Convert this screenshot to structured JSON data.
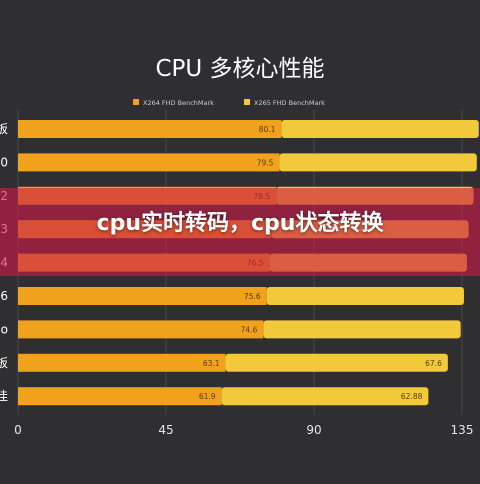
{
  "chart_data": {
    "type": "bar",
    "orientation": "horizontal",
    "stacked": true,
    "title": "CPU 多核心性能",
    "xlim": [
      0,
      135
    ],
    "xticks": [
      0,
      45,
      90,
      135
    ],
    "legend_position": "top",
    "categories": [
      "板",
      "0",
      "2",
      "3",
      "4",
      "6",
      "o",
      "板",
      "佳"
    ],
    "series": [
      {
        "name": "X264 FHD BenchMark",
        "color": "#f0a21c",
        "values": [
          80.1,
          79.5,
          78.5,
          77.0,
          76.5,
          75.6,
          74.6,
          63.1,
          61.9
        ],
        "labels": [
          "80.1",
          "79.5",
          "78.5",
          "",
          "76.5",
          "75.6",
          "74.6",
          "63.1",
          "61.9"
        ]
      },
      {
        "name": "X265 FHD BenchMark",
        "color": "#f2c93b",
        "values": [
          60.0,
          60.0,
          60.0,
          60.0,
          60.0,
          60.0,
          60.0,
          67.6,
          62.88
        ],
        "labels": [
          "",
          "",
          "",
          "",
          "",
          "",
          "",
          "67.6",
          "62.88"
        ]
      }
    ],
    "grid": true,
    "background": "#2f2f31"
  },
  "overlay": {
    "caption": "cpu实时转码，cpu状态转换",
    "color": "#cd1c48"
  }
}
